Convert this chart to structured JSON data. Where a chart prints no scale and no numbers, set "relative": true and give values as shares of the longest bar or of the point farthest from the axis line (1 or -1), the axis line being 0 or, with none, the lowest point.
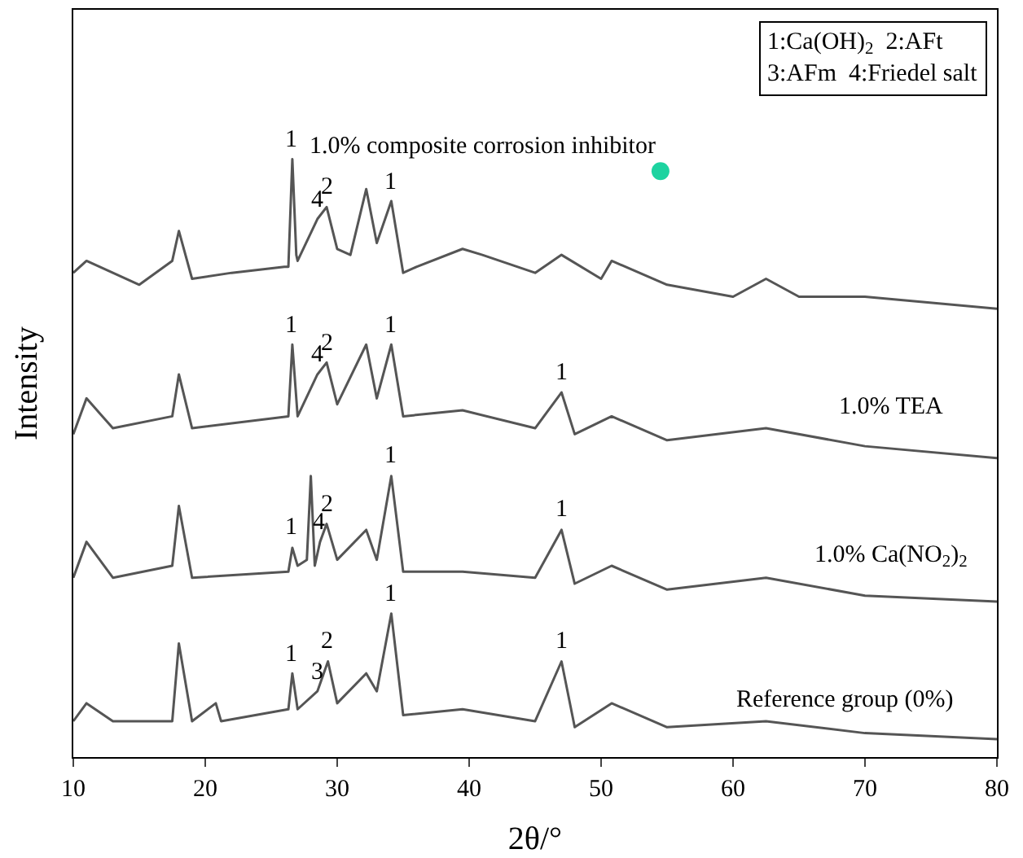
{
  "chart_data": {
    "type": "line",
    "relative": true,
    "xlabel": "2θ/°",
    "ylabel": "Intensity",
    "xlim": [
      10,
      80
    ],
    "xticks": [
      10,
      20,
      30,
      40,
      50,
      60,
      70,
      80
    ],
    "grid": false,
    "legend": false,
    "tick_labels": "x",
    "marker": "none",
    "line_style": "solid",
    "series": [
      {
        "name": "1.0% composite corrosion inhibitor",
        "color": "#555555",
        "x": [
          10,
          11,
          15,
          17.5,
          18,
          19,
          22,
          26,
          26.3,
          26.6,
          26.9,
          27,
          28.5,
          29.2,
          30,
          31,
          32.2,
          33,
          34.1,
          35,
          36,
          39.5,
          41,
          45,
          47,
          50,
          50.8,
          55,
          60,
          62.5,
          65,
          70,
          80
        ],
        "values": [
          0.81,
          0.83,
          0.79,
          0.83,
          0.88,
          0.8,
          0.81,
          0.82,
          0.82,
          1.0,
          0.84,
          0.83,
          0.9,
          0.92,
          0.85,
          0.84,
          0.95,
          0.86,
          0.93,
          0.81,
          0.82,
          0.85,
          0.84,
          0.81,
          0.84,
          0.8,
          0.83,
          0.79,
          0.77,
          0.8,
          0.77,
          0.77,
          0.75
        ]
      },
      {
        "name": "1.0% TEA",
        "color": "#555555",
        "x": [
          10,
          11,
          13,
          17.5,
          18,
          19,
          26.3,
          26.6,
          27,
          28.5,
          29.2,
          30,
          32.2,
          33,
          34.1,
          35,
          39.5,
          45,
          47,
          48,
          50.8,
          55,
          62.5,
          70,
          80
        ],
        "values": [
          0.54,
          0.6,
          0.55,
          0.57,
          0.64,
          0.55,
          0.57,
          0.69,
          0.57,
          0.64,
          0.66,
          0.59,
          0.69,
          0.6,
          0.69,
          0.57,
          0.58,
          0.55,
          0.61,
          0.54,
          0.57,
          0.53,
          0.55,
          0.52,
          0.5
        ]
      },
      {
        "name": "1.0% Ca(NO$_{2}$)$_{2}$",
        "color": "#555555",
        "x": [
          10,
          11,
          13,
          17.5,
          18,
          19,
          26.3,
          26.6,
          27,
          27.7,
          28,
          28.3,
          28.7,
          29.2,
          30,
          32.2,
          33,
          34.1,
          35,
          39.5,
          45,
          47,
          48,
          50.8,
          55,
          62.5,
          70,
          80
        ],
        "values": [
          0.3,
          0.36,
          0.3,
          0.32,
          0.42,
          0.3,
          0.31,
          0.35,
          0.32,
          0.33,
          0.47,
          0.32,
          0.36,
          0.39,
          0.33,
          0.38,
          0.33,
          0.47,
          0.31,
          0.31,
          0.3,
          0.38,
          0.29,
          0.32,
          0.28,
          0.3,
          0.27,
          0.26
        ]
      },
      {
        "name": "Reference group (0%)",
        "color": "#555555",
        "x": [
          10,
          11,
          13,
          17.5,
          18,
          19,
          20.8,
          21.2,
          26.3,
          26.6,
          27,
          28.5,
          29.3,
          30,
          32.2,
          33,
          34.1,
          35,
          39.5,
          45,
          47,
          48,
          50.8,
          55,
          62.5,
          70,
          80
        ],
        "values": [
          0.06,
          0.09,
          0.06,
          0.06,
          0.19,
          0.06,
          0.09,
          0.06,
          0.08,
          0.14,
          0.08,
          0.11,
          0.16,
          0.09,
          0.14,
          0.11,
          0.24,
          0.07,
          0.08,
          0.06,
          0.16,
          0.05,
          0.09,
          0.05,
          0.06,
          0.04,
          0.03
        ]
      },
      {
        "type": "scatter",
        "marker": "circle",
        "color": "#1dd3a0",
        "x": [
          54.5
        ],
        "values": [
          0.98
        ]
      }
    ],
    "annotations": [
      "1:Ca(OH)$_{2}$  2:AFt",
      "3:AFm  4:Friedel salt",
      {
        "text": "1",
        "x": 26.6,
        "y": 1.0
      },
      {
        "text": "4",
        "x": 28.5,
        "y": 0.9
      },
      {
        "text": "2",
        "x": 29.2,
        "y": 0.92
      },
      {
        "text": "1",
        "x": 34.1,
        "y": 0.93
      },
      {
        "text": "1",
        "x": 26.6,
        "y": 0.69
      },
      {
        "text": "4",
        "x": 28.5,
        "y": 0.64
      },
      {
        "text": "2",
        "x": 29.2,
        "y": 0.66
      },
      {
        "text": "1",
        "x": 34.1,
        "y": 0.69
      },
      {
        "text": "1",
        "x": 47,
        "y": 0.61
      },
      {
        "text": "1",
        "x": 26.6,
        "y": 0.35
      },
      {
        "text": "4",
        "x": 28.7,
        "y": 0.36
      },
      {
        "text": "2",
        "x": 29.2,
        "y": 0.39
      },
      {
        "text": "1",
        "x": 34.1,
        "y": 0.47
      },
      {
        "text": "1",
        "x": 47,
        "y": 0.38
      },
      {
        "text": "1",
        "x": 26.6,
        "y": 0.14
      },
      {
        "text": "3",
        "x": 28.5,
        "y": 0.11
      },
      {
        "text": "2",
        "x": 29.3,
        "y": 0.16
      },
      {
        "text": "1",
        "x": 34.1,
        "y": 0.24
      },
      {
        "text": "1",
        "x": 47,
        "y": 0.16
      }
    ]
  }
}
